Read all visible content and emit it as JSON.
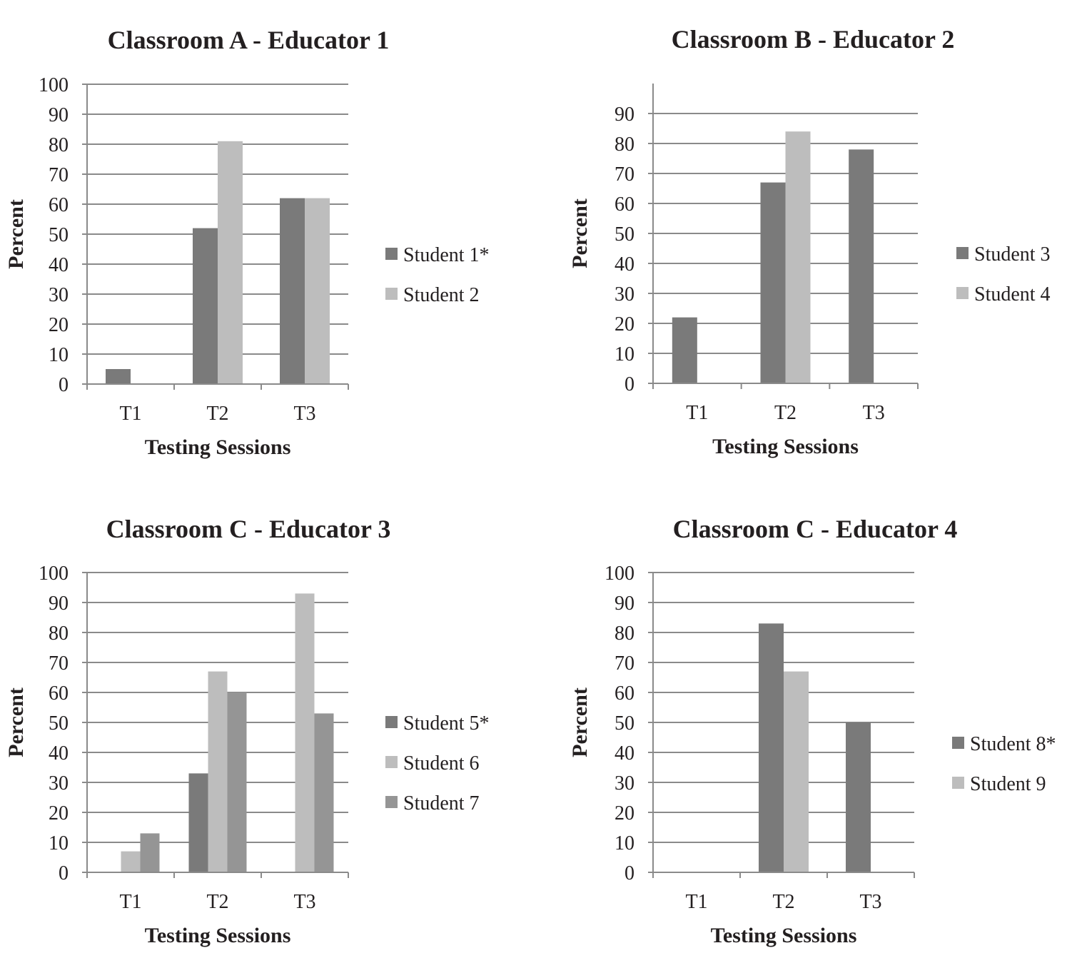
{
  "chart_data": [
    {
      "type": "bar",
      "title": "Classroom A - Educator 1",
      "xlabel": "Testing Sessions",
      "ylabel": "Percent",
      "categories": [
        "T1",
        "T2",
        "T3"
      ],
      "ylim": [
        0,
        100
      ],
      "yticks": [
        0,
        10,
        20,
        30,
        40,
        50,
        60,
        70,
        80,
        90,
        100
      ],
      "grid": true,
      "legend_position": "right",
      "series": [
        {
          "name": "Student 1*",
          "color": "#7a7a7a",
          "values": [
            5,
            52,
            62
          ]
        },
        {
          "name": "Student 2",
          "color": "#bdbdbd",
          "values": [
            0,
            81,
            62
          ]
        }
      ]
    },
    {
      "type": "bar",
      "title": "Classroom B - Educator 2",
      "xlabel": "Testing Sessions",
      "ylabel": "Percent",
      "categories": [
        "T1",
        "T2",
        "T3"
      ],
      "ylim": [
        0,
        100
      ],
      "yticks": [
        0,
        10,
        20,
        30,
        40,
        50,
        60,
        70,
        80,
        90
      ],
      "grid": true,
      "legend_position": "right",
      "series": [
        {
          "name": "Student 3",
          "color": "#7a7a7a",
          "values": [
            22,
            67,
            78
          ]
        },
        {
          "name": "Student 4",
          "color": "#bdbdbd",
          "values": [
            0,
            84,
            0
          ]
        }
      ]
    },
    {
      "type": "bar",
      "title": "Classroom C - Educator 3",
      "xlabel": "Testing Sessions",
      "ylabel": "Percent",
      "categories": [
        "T1",
        "T2",
        "T3"
      ],
      "ylim": [
        0,
        100
      ],
      "yticks": [
        0,
        10,
        20,
        30,
        40,
        50,
        60,
        70,
        80,
        90,
        100
      ],
      "grid": true,
      "legend_position": "right",
      "series": [
        {
          "name": "Student 5*",
          "color": "#7a7a7a",
          "values": [
            0,
            33,
            0
          ]
        },
        {
          "name": "Student 6",
          "color": "#bdbdbd",
          "values": [
            7,
            67,
            93
          ]
        },
        {
          "name": "Student 7",
          "color": "#959595",
          "values": [
            13,
            60,
            53
          ]
        }
      ]
    },
    {
      "type": "bar",
      "title": "Classroom C - Educator 4",
      "xlabel": "Testing Sessions",
      "ylabel": "Percent",
      "categories": [
        "T1",
        "T2",
        "T3"
      ],
      "ylim": [
        0,
        100
      ],
      "yticks": [
        0,
        10,
        20,
        30,
        40,
        50,
        60,
        70,
        80,
        90,
        100
      ],
      "grid": true,
      "legend_position": "right",
      "series": [
        {
          "name": "Student 8*",
          "color": "#7a7a7a",
          "values": [
            0,
            83,
            50
          ]
        },
        {
          "name": "Student 9",
          "color": "#bdbdbd",
          "values": [
            0,
            67,
            0
          ]
        }
      ]
    }
  ]
}
